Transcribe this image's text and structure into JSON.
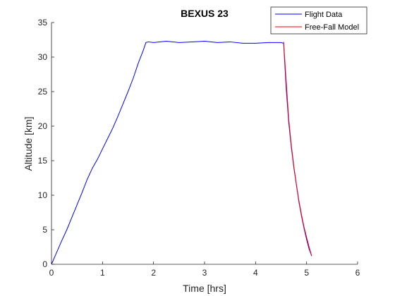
{
  "chart_data": {
    "type": "line",
    "title": "BEXUS 23",
    "xlabel": "Time [hrs]",
    "ylabel": "Altitude [km]",
    "xlim": [
      0,
      6
    ],
    "ylim": [
      0,
      35
    ],
    "xticks": [
      0,
      1,
      2,
      3,
      4,
      5,
      6
    ],
    "yticks": [
      0,
      5,
      10,
      15,
      20,
      25,
      30,
      35
    ],
    "xtick_labels": [
      "0",
      "1",
      "2",
      "3",
      "4",
      "5",
      "6"
    ],
    "ytick_labels": [
      "0",
      "5",
      "10",
      "15",
      "20",
      "25",
      "30",
      "35"
    ],
    "grid": false,
    "legend_position": "top-right",
    "series": [
      {
        "name": "Flight Data",
        "color": "#0000ff",
        "x": [
          0,
          0.1,
          0.2,
          0.3,
          0.4,
          0.5,
          0.6,
          0.7,
          0.8,
          0.9,
          1.0,
          1.1,
          1.2,
          1.3,
          1.4,
          1.5,
          1.6,
          1.7,
          1.8,
          1.85,
          1.9,
          2.0,
          2.25,
          2.5,
          2.75,
          3.0,
          3.25,
          3.5,
          3.75,
          4.0,
          4.25,
          4.5,
          4.55,
          4.6,
          4.65,
          4.7,
          4.75,
          4.8,
          4.85,
          4.9,
          4.95,
          5.0,
          5.05,
          5.1
        ],
        "y": [
          0,
          1.7,
          3.4,
          5.0,
          6.8,
          8.6,
          10.4,
          12.3,
          13.9,
          15.2,
          16.7,
          18.2,
          19.7,
          21.4,
          23.2,
          25.0,
          26.9,
          29.1,
          31.0,
          32.1,
          32.2,
          32.1,
          32.3,
          32.1,
          32.2,
          32.3,
          32.1,
          32.2,
          32.0,
          32.0,
          32.1,
          32.1,
          32.0,
          25.5,
          20.5,
          17.0,
          14.0,
          11.5,
          9.0,
          7.0,
          5.2,
          3.6,
          2.2,
          1.2
        ]
      },
      {
        "name": "Free-Fall Model",
        "color": "#ff0000",
        "x": [
          4.55,
          4.6,
          4.65,
          4.7,
          4.75,
          4.8,
          4.85,
          4.9,
          4.95,
          5.0,
          5.05,
          5.1
        ],
        "y": [
          32.2,
          26.5,
          21.0,
          17.3,
          14.2,
          11.6,
          9.2,
          7.2,
          5.4,
          3.9,
          2.5,
          1.2
        ]
      }
    ]
  }
}
